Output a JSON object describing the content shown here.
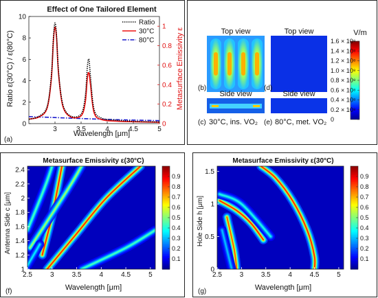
{
  "panel_labels": {
    "a": "(a)",
    "b": "(b)",
    "c": "(c)",
    "d": "(d)",
    "e": "(e)",
    "f": "(f)",
    "g": "(g)"
  },
  "colors": {
    "ratio": "#000000",
    "t30": "#ee1111",
    "t80": "#1a1acc",
    "right_axis": "#e01010"
  },
  "chart_data": [
    {
      "id": "a",
      "type": "line",
      "title": "Effect of One Tailored Element",
      "xlabel": "Wavelength [μm]",
      "ylabel_left": "Ratio  ε(30°C) / ε(80°C)",
      "ylabel_right": "Metasurface  Emissivity  ε",
      "xlim": [
        2.5,
        5
      ],
      "ylim_left": [
        0,
        10
      ],
      "ylim_right": [
        0,
        1.1
      ],
      "x_ticks": [
        3,
        3.5,
        4,
        4.5,
        5
      ],
      "y_ticks_left": [
        0,
        2,
        4,
        6,
        8,
        10
      ],
      "y_ticks_right": [
        0,
        0.2,
        0.4,
        0.6,
        0.8,
        1
      ],
      "legend": {
        "position": "top-right",
        "entries": [
          "Ratio",
          "30°C",
          "80°C"
        ]
      },
      "series": [
        {
          "name": "Ratio",
          "axis": "left",
          "style": "dotted",
          "x": [
            2.5,
            2.7,
            2.85,
            2.93,
            2.97,
            3.0,
            3.03,
            3.07,
            3.15,
            3.3,
            3.5,
            3.58,
            3.62,
            3.65,
            3.68,
            3.75,
            3.9,
            4.2,
            4.6,
            5.0
          ],
          "y": [
            0.4,
            0.7,
            1.6,
            4.5,
            8.0,
            9.4,
            8.2,
            4.8,
            1.8,
            0.7,
            0.9,
            2.6,
            5.3,
            6.0,
            4.4,
            1.3,
            0.5,
            0.3,
            0.2,
            0.15
          ]
        },
        {
          "name": "30°C",
          "axis": "right",
          "x": [
            2.5,
            2.7,
            2.85,
            2.93,
            2.97,
            3.0,
            3.03,
            3.07,
            3.15,
            3.3,
            3.5,
            3.58,
            3.62,
            3.65,
            3.68,
            3.75,
            3.9,
            4.2,
            4.6,
            5.0
          ],
          "y": [
            0.045,
            0.07,
            0.16,
            0.46,
            0.85,
            0.99,
            0.88,
            0.5,
            0.18,
            0.07,
            0.08,
            0.22,
            0.47,
            0.52,
            0.4,
            0.11,
            0.04,
            0.025,
            0.018,
            0.014
          ]
        },
        {
          "name": "80°C",
          "axis": "right",
          "style": "dashdot",
          "x": [
            2.5,
            3.0,
            3.5,
            4.0,
            4.5,
            5.0
          ],
          "y": [
            0.072,
            0.062,
            0.052,
            0.043,
            0.036,
            0.03
          ]
        }
      ]
    },
    {
      "id": "bcde",
      "type": "heatmap",
      "labels": {
        "top_view_1": "Top view",
        "top_view_2": "Top view",
        "side_view_1": "Side view",
        "side_view_2": "Side view",
        "caption_c": "30°C, ins. VO₂",
        "caption_e": "80°C, met. VO₂"
      },
      "colorbar": {
        "unit": "V/m",
        "ticks": [
          "0",
          "0.2 × 10⁸",
          "0.4 × 10⁸",
          "0.6 × 10⁸",
          "0.8 × 10⁸",
          "1.0 × 10⁸",
          "1.2 × 10⁸",
          "1.4 × 10⁸",
          "1.6 × 10⁸"
        ],
        "range": [
          0,
          160000000.0
        ]
      }
    },
    {
      "id": "f",
      "type": "heatmap",
      "title": "Metasurface  Emissivity  ε(30°C)",
      "xlabel": "Wavelength [μm]",
      "ylabel": "Antenna Side  c [μm]",
      "xlim": [
        2.5,
        5.1
      ],
      "ylim": [
        1,
        2.45
      ],
      "x_ticks": [
        2.5,
        3,
        3.5,
        4,
        4.5,
        5
      ],
      "y_ticks": [
        1,
        1.2,
        1.4,
        1.6,
        1.8,
        2,
        2.2,
        2.4
      ],
      "colorbar_ticks": [
        0.1,
        0.2,
        0.3,
        0.4,
        0.5,
        0.6,
        0.7,
        0.8,
        0.9
      ],
      "resonances": [
        {
          "points": [
            [
              2.8,
              1.2
            ],
            [
              3.0,
              1.75
            ],
            [
              3.2,
              2.45
            ]
          ],
          "peak": 0.95
        },
        {
          "points": [
            [
              2.9,
              1.0
            ],
            [
              3.5,
              1.5
            ],
            [
              4.1,
              2.0
            ],
            [
              4.8,
              2.45
            ]
          ],
          "peak": 0.95
        },
        {
          "points": [
            [
              2.55,
              1.3
            ],
            [
              3.3,
              2.1
            ],
            [
              3.6,
              2.45
            ]
          ],
          "peak": 0.6
        },
        {
          "points": [
            [
              2.5,
              1.55
            ],
            [
              2.85,
              2.15
            ],
            [
              3.0,
              2.45
            ]
          ],
          "peak": 0.5
        },
        {
          "points": [
            [
              3.6,
              1.0
            ],
            [
              4.5,
              1.3
            ],
            [
              5.1,
              1.55
            ]
          ],
          "peak": 0.5
        },
        {
          "points": [
            [
              2.5,
              1.05
            ],
            [
              2.75,
              1.35
            ]
          ],
          "peak": 0.4
        }
      ]
    },
    {
      "id": "g",
      "type": "heatmap",
      "title": "Metasurface  Emissivity  ε(30°C)",
      "xlabel": "Wavelength [μm]",
      "ylabel": "Hole Side  h [μm]",
      "xlim": [
        2.5,
        5.1
      ],
      "ylim": [
        0,
        1.58
      ],
      "x_ticks": [
        2.5,
        3,
        3.5,
        4,
        4.5,
        5
      ],
      "y_ticks": [
        0,
        0.5,
        1,
        1.5
      ],
      "colorbar_ticks": [
        0.1,
        0.2,
        0.3,
        0.4,
        0.5,
        0.6,
        0.7,
        0.8,
        0.9
      ],
      "resonances": [
        {
          "points": [
            [
              2.55,
              1.05
            ],
            [
              2.9,
              0.9
            ],
            [
              3.2,
              0.7
            ],
            [
              3.45,
              0.45
            ]
          ],
          "peak": 0.95
        },
        {
          "points": [
            [
              3.4,
              1.58
            ],
            [
              3.7,
              1.4
            ],
            [
              4.05,
              1.05
            ],
            [
              4.35,
              0.6
            ],
            [
              4.5,
              0.2
            ],
            [
              4.5,
              0.0
            ]
          ],
          "peak": 0.95
        },
        {
          "points": [
            [
              2.7,
              0.8
            ],
            [
              2.85,
              0.3
            ],
            [
              2.9,
              0.0
            ]
          ],
          "peak": 0.9
        },
        {
          "points": [
            [
              2.55,
              1.15
            ],
            [
              3.0,
              1.0
            ],
            [
              3.6,
              0.5
            ]
          ],
          "peak": 0.45
        },
        {
          "points": [
            [
              2.6,
              0.6
            ],
            [
              2.8,
              0.0
            ]
          ],
          "peak": 0.35
        }
      ]
    }
  ]
}
